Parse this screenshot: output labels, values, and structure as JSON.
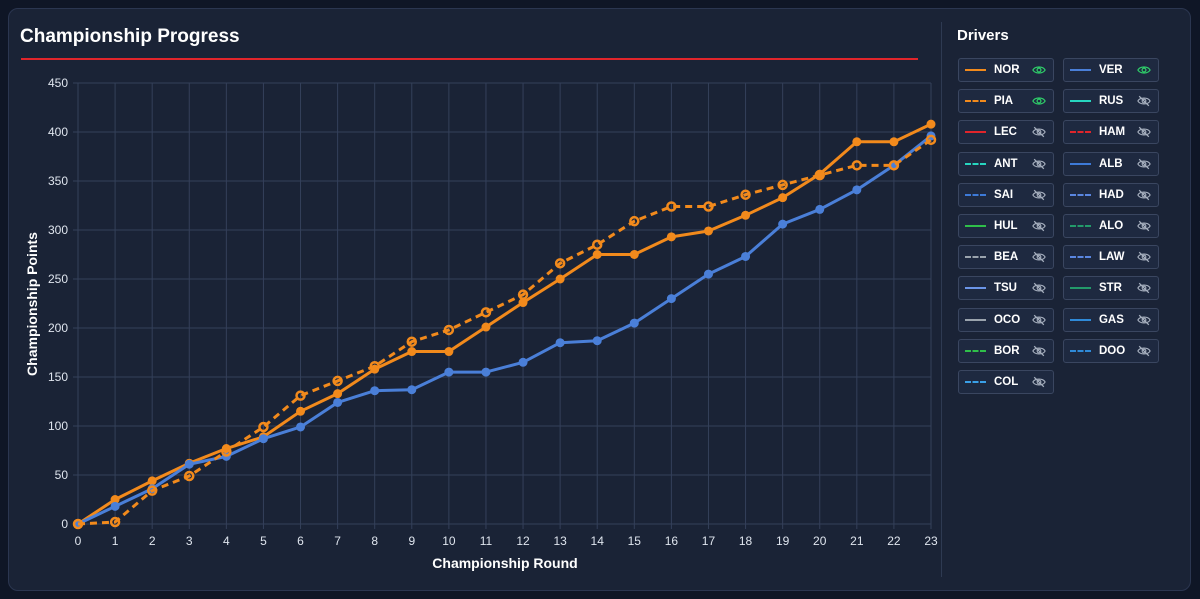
{
  "header": {
    "title": "Championship Progress"
  },
  "sidebar": {
    "title": "Drivers",
    "drivers": [
      {
        "code": "NOR",
        "color": "#f28a1c",
        "dashed": false,
        "visible": true
      },
      {
        "code": "VER",
        "color": "#4a7fd8",
        "dashed": false,
        "visible": true
      },
      {
        "code": "PIA",
        "color": "#f28a1c",
        "dashed": true,
        "visible": true
      },
      {
        "code": "RUS",
        "color": "#27d6c0",
        "dashed": false,
        "visible": false
      },
      {
        "code": "LEC",
        "color": "#e0252b",
        "dashed": false,
        "visible": false
      },
      {
        "code": "HAM",
        "color": "#e0252b",
        "dashed": true,
        "visible": false
      },
      {
        "code": "ANT",
        "color": "#27d6c0",
        "dashed": true,
        "visible": false
      },
      {
        "code": "ALB",
        "color": "#3d7ad8",
        "dashed": false,
        "visible": false
      },
      {
        "code": "SAI",
        "color": "#3d7ad8",
        "dashed": true,
        "visible": false
      },
      {
        "code": "HAD",
        "color": "#5a86e0",
        "dashed": true,
        "visible": false
      },
      {
        "code": "HUL",
        "color": "#2fbf4a",
        "dashed": false,
        "visible": false
      },
      {
        "code": "ALO",
        "color": "#239a6a",
        "dashed": true,
        "visible": false
      },
      {
        "code": "BEA",
        "color": "#9aa3ad",
        "dashed": true,
        "visible": false
      },
      {
        "code": "LAW",
        "color": "#5a86e0",
        "dashed": true,
        "visible": false
      },
      {
        "code": "TSU",
        "color": "#6b95e8",
        "dashed": false,
        "visible": false
      },
      {
        "code": "STR",
        "color": "#239a6a",
        "dashed": false,
        "visible": false
      },
      {
        "code": "OCO",
        "color": "#9aa3ad",
        "dashed": false,
        "visible": false
      },
      {
        "code": "GAS",
        "color": "#2f8ad8",
        "dashed": false,
        "visible": false
      },
      {
        "code": "BOR",
        "color": "#2fbf4a",
        "dashed": true,
        "visible": false
      },
      {
        "code": "DOO",
        "color": "#2f8ad8",
        "dashed": true,
        "visible": false
      },
      {
        "code": "COL",
        "color": "#3aa0e8",
        "dashed": true,
        "visible": false
      }
    ]
  },
  "chart_data": {
    "type": "line",
    "title": "Championship Progress",
    "xlabel": "Championship Round",
    "ylabel": "Championship Points",
    "x": [
      0,
      1,
      2,
      3,
      4,
      5,
      6,
      7,
      8,
      9,
      10,
      11,
      12,
      13,
      14,
      15,
      16,
      17,
      18,
      19,
      20,
      21,
      22,
      23
    ],
    "xlim": [
      0,
      23
    ],
    "ylim": [
      0,
      450
    ],
    "yticks": [
      0,
      50,
      100,
      150,
      200,
      250,
      300,
      350,
      400,
      450
    ],
    "grid": true,
    "series": [
      {
        "name": "NOR",
        "color": "#f28a1c",
        "dashed": false,
        "values": [
          0,
          25,
          44,
          62,
          77,
          89,
          115,
          133,
          158,
          176,
          176,
          201,
          226,
          250,
          275,
          275,
          293,
          299,
          315,
          333,
          357,
          390,
          390,
          408
        ]
      },
      {
        "name": "VER",
        "color": "#4a7fd8",
        "dashed": false,
        "values": [
          0,
          18,
          36,
          61,
          69,
          87,
          99,
          124,
          136,
          137,
          155,
          155,
          165,
          185,
          187,
          205,
          230,
          255,
          273,
          306,
          321,
          341,
          366,
          396
        ]
      },
      {
        "name": "PIA",
        "color": "#f28a1c",
        "dashed": true,
        "values": [
          0,
          2,
          34,
          49,
          74,
          99,
          131,
          146,
          161,
          186,
          198,
          216,
          234,
          266,
          285,
          309,
          324,
          324,
          336,
          346,
          356,
          366,
          366,
          392
        ]
      }
    ]
  }
}
